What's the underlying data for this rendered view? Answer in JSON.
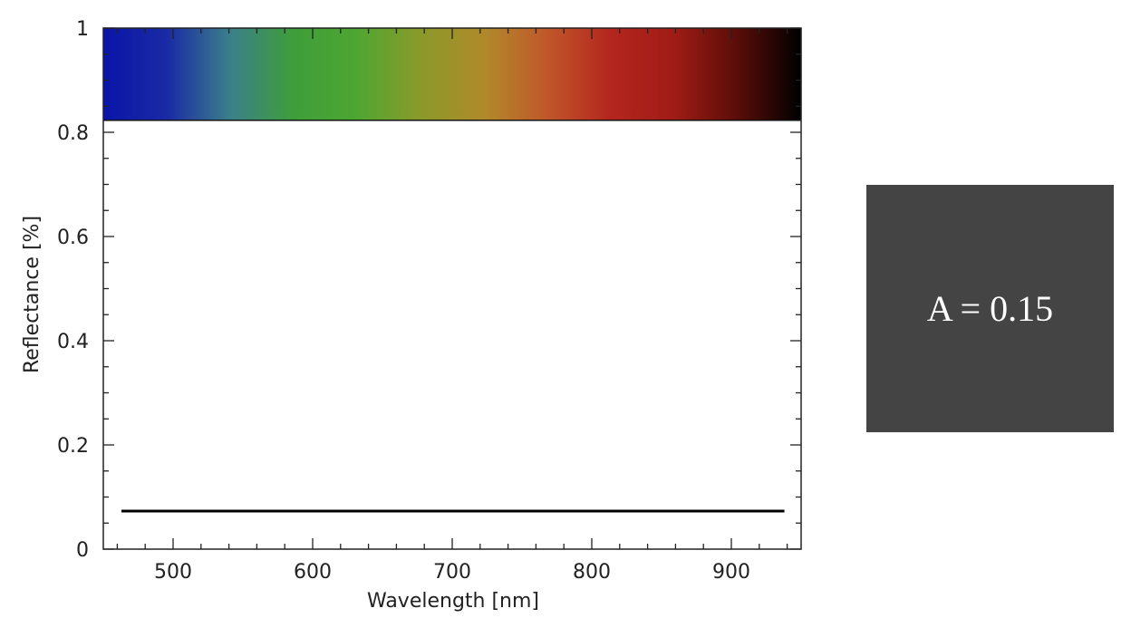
{
  "chart_data": {
    "type": "line",
    "xlabel": "Wavelength [nm]",
    "ylabel": "Reflectance [%]",
    "xlim": [
      450,
      950
    ],
    "ylim": [
      0,
      1
    ],
    "x_ticks": [
      500,
      600,
      700,
      800,
      900
    ],
    "y_ticks": [
      0,
      0.2,
      0.4,
      0.6,
      0.8,
      1
    ],
    "y_tick_labels": [
      "0",
      "0.2",
      "0.4",
      "0.6",
      "0.8",
      "1"
    ],
    "grid": false,
    "spectrum_band": {
      "y_range": [
        0.823,
        1
      ],
      "x_range": [
        450,
        950
      ],
      "colors": [
        "#0a15a8",
        "#1a2aa5",
        "#3b7f8a",
        "#3f9e3a",
        "#4ea632",
        "#8a9a2a",
        "#b08a2a",
        "#c0572a",
        "#b3261e",
        "#a01c16",
        "#5a0d08",
        "#000000"
      ]
    },
    "series": [
      {
        "x": [
          463,
          938
        ],
        "y": [
          0.073,
          0.073
        ],
        "color": "#000000"
      }
    ]
  },
  "swatch": {
    "label": "A = 0.15",
    "color": "#444444"
  }
}
